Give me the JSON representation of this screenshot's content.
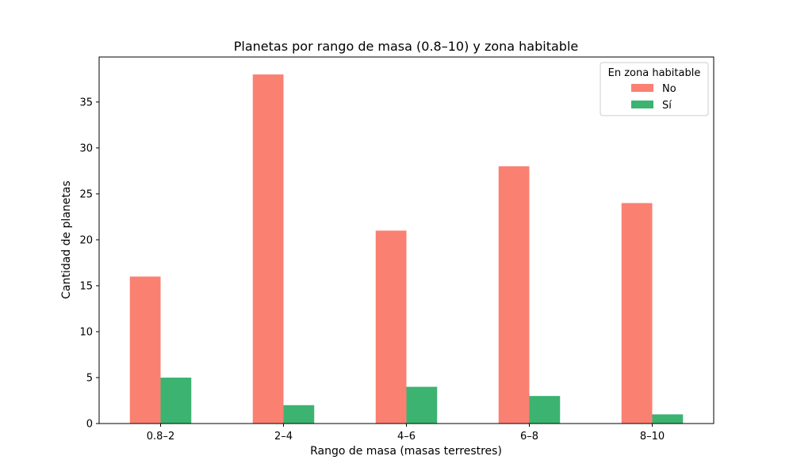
{
  "chart_data": {
    "type": "bar",
    "title": "Planetas por rango de masa (0.8–10) y zona habitable",
    "xlabel": "Rango de masa (masas terrestres)",
    "ylabel": "Cantidad de planetas",
    "categories": [
      "0.8–2",
      "2–4",
      "4–6",
      "6–8",
      "8–10"
    ],
    "series": [
      {
        "name": "No",
        "values": [
          16,
          38,
          21,
          28,
          24
        ],
        "color": "#fa8072"
      },
      {
        "name": "Sí",
        "values": [
          5,
          2,
          4,
          3,
          1
        ],
        "color": "#3cb371"
      }
    ],
    "ylim": [
      0,
      39.9
    ],
    "yticks": [
      0,
      5,
      10,
      15,
      20,
      25,
      30,
      35
    ],
    "legend": {
      "title": "En zona habitable",
      "placement": "top-right"
    },
    "grid": false
  }
}
